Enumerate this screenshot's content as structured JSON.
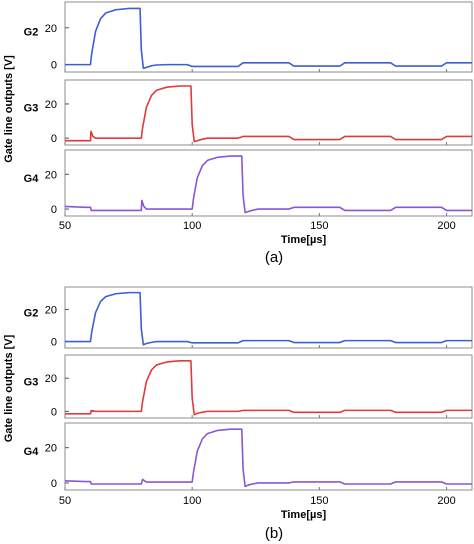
{
  "colors": {
    "G2": "#3c5fd6",
    "G3": "#e03a3a",
    "G4": "#8a55d8"
  },
  "chart_data": [
    {
      "type": "line",
      "caption": "(a)",
      "ylabel": "Gate line outputs [V]",
      "xlabel": "Time[µs]",
      "xlim": [
        50,
        210
      ],
      "x_ticks": [
        50,
        100,
        150,
        200
      ],
      "y_ticks": [
        0,
        20
      ],
      "series": [
        {
          "name": "G2",
          "ylim": [
            -4,
            34
          ],
          "x": [
            50,
            60,
            60.5,
            62,
            64,
            66,
            70,
            75,
            79.5,
            80,
            80.8,
            82,
            84,
            86,
            90,
            98,
            100,
            100.3,
            118,
            120,
            120.3,
            138,
            140,
            140.3,
            158,
            160,
            160.3,
            178,
            180,
            180.3,
            198,
            200,
            200.3,
            210
          ],
          "y": [
            0,
            0,
            6,
            18,
            25,
            28,
            29.8,
            30.5,
            30.5,
            8,
            -2,
            -1.5,
            -0.6,
            -0.2,
            0,
            0,
            -1,
            -1,
            -1,
            1,
            1,
            1,
            -0.8,
            -0.8,
            -0.8,
            1,
            1,
            1,
            -0.8,
            -0.8,
            -0.8,
            1,
            1,
            1
          ]
        },
        {
          "name": "G3",
          "ylim": [
            -4,
            34
          ],
          "x": [
            50,
            60,
            60.2,
            61,
            62,
            79,
            80,
            80.5,
            82,
            84,
            86,
            90,
            95,
            99.5,
            100,
            100.8,
            102,
            104,
            106,
            110,
            118,
            120,
            120.3,
            138,
            140,
            140.3,
            158,
            160,
            160.3,
            178,
            180,
            180.3,
            198,
            200,
            200.3,
            210
          ],
          "y": [
            -1.5,
            -1.5,
            4,
            1,
            0,
            0,
            0,
            6,
            18,
            25,
            28,
            29.8,
            30.5,
            30.5,
            8,
            -2,
            -1.5,
            -0.6,
            0,
            0,
            0,
            1,
            1,
            1,
            -0.8,
            -0.8,
            -0.8,
            1,
            1,
            1,
            -0.8,
            -0.8,
            -0.8,
            1,
            1,
            1
          ]
        },
        {
          "name": "G4",
          "ylim": [
            -4,
            34
          ],
          "x": [
            50,
            58,
            60,
            60.3,
            78,
            80,
            80.2,
            81,
            82,
            99,
            100,
            100.5,
            102,
            104,
            106,
            110,
            115,
            119.5,
            120,
            120.8,
            122,
            124,
            126,
            130,
            138,
            140,
            140.3,
            158,
            160,
            160.3,
            178,
            180,
            180.3,
            198,
            200,
            200.3,
            210
          ],
          "y": [
            1.5,
            1,
            1,
            -0.8,
            -0.8,
            -0.8,
            5,
            1.5,
            0,
            0,
            0,
            6,
            18,
            25,
            28,
            29.8,
            30.5,
            30.5,
            8,
            -2,
            -1.5,
            -0.6,
            0,
            0,
            0,
            1,
            1,
            1,
            -0.8,
            -0.8,
            -0.8,
            1,
            1,
            1,
            -0.8,
            -0.8,
            -0.8
          ]
        }
      ]
    },
    {
      "type": "line",
      "caption": "(b)",
      "ylabel": "Gate line outputs [V]",
      "xlabel": "Time[µs]",
      "xlim": [
        50,
        210
      ],
      "x_ticks": [
        50,
        100,
        150,
        200
      ],
      "y_ticks": [
        0,
        20
      ],
      "series": [
        {
          "name": "G2",
          "ylim": [
            -4,
            34
          ],
          "x": [
            50,
            60,
            60.5,
            62,
            64,
            66,
            70,
            75,
            79.5,
            80,
            80.8,
            82,
            84,
            86,
            90,
            98,
            100,
            100.3,
            118,
            120,
            120.3,
            138,
            140,
            140.3,
            158,
            160,
            160.3,
            178,
            180,
            180.3,
            198,
            200,
            200.3,
            210
          ],
          "y": [
            0,
            0,
            6,
            18,
            25,
            28,
            29.8,
            30.5,
            30.5,
            8,
            -2,
            -1.2,
            -0.5,
            0,
            0,
            0,
            -0.8,
            -0.8,
            -0.8,
            0.6,
            0.6,
            0.6,
            -0.6,
            -0.6,
            -0.6,
            0.6,
            0.6,
            0.6,
            -0.6,
            -0.6,
            -0.6,
            0.6,
            0.6,
            0.6
          ]
        },
        {
          "name": "G3",
          "ylim": [
            -4,
            34
          ],
          "x": [
            50,
            60,
            60.3,
            62,
            79,
            80,
            80.5,
            82,
            84,
            86,
            90,
            95,
            99.5,
            100,
            100.8,
            102,
            104,
            106,
            110,
            118,
            120,
            120.3,
            138,
            140,
            140.3,
            158,
            160,
            160.3,
            178,
            180,
            180.3,
            198,
            200,
            200.3,
            210
          ],
          "y": [
            -1.5,
            -1.5,
            0.5,
            0,
            0,
            0,
            6,
            18,
            25,
            28,
            29.8,
            30.5,
            30.5,
            8,
            -2,
            -1.2,
            -0.5,
            0,
            0,
            0,
            0.6,
            0.6,
            0.6,
            -0.6,
            -0.6,
            -0.6,
            0.6,
            0.6,
            0.6,
            -0.6,
            -0.6,
            -0.6,
            0.6,
            0.6,
            0.6
          ]
        },
        {
          "name": "G4",
          "ylim": [
            -4,
            34
          ],
          "x": [
            50,
            58,
            60,
            60.3,
            78,
            80,
            80.5,
            82,
            99,
            100,
            100.5,
            102,
            104,
            106,
            110,
            115,
            119.5,
            120,
            120.8,
            122,
            124,
            126,
            130,
            138,
            140,
            140.3,
            158,
            160,
            160.3,
            178,
            180,
            180.3,
            198,
            200,
            200.3,
            210
          ],
          "y": [
            1.2,
            0.8,
            0.8,
            -0.6,
            -0.6,
            -0.6,
            2,
            0.5,
            0.5,
            0.5,
            6,
            18,
            25,
            28,
            29.8,
            30.5,
            30.5,
            8,
            -2,
            -1.2,
            -0.5,
            0,
            0,
            0,
            0.6,
            0.6,
            0.6,
            -0.6,
            -0.6,
            -0.6,
            0.6,
            0.6,
            0.6,
            -0.6,
            -0.6,
            -0.6
          ]
        }
      ]
    }
  ]
}
